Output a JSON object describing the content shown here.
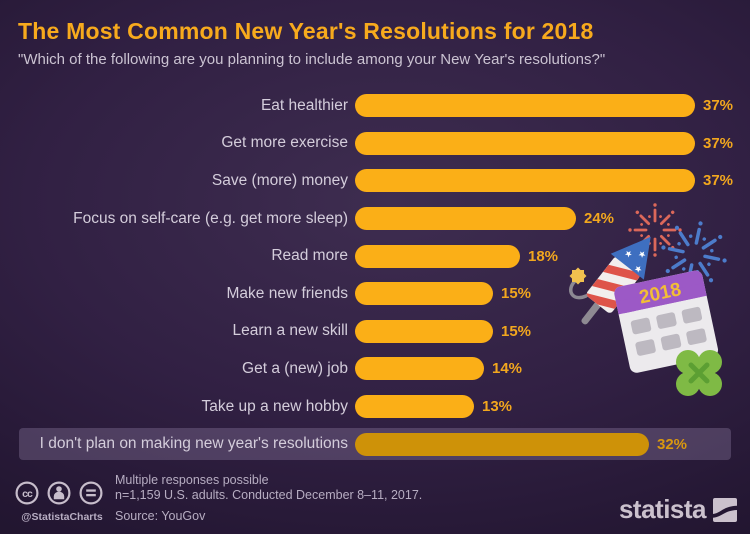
{
  "header": {
    "title": "The Most Common New Year's Resolutions for 2018",
    "subtitle": "\"Which of the following are you planning to include among your New Year's resolutions?\""
  },
  "chart_data": {
    "type": "bar",
    "orientation": "horizontal",
    "categories": [
      "Eat healthier",
      "Get more exercise",
      "Save (more) money",
      "Focus on self-care (e.g. get more sleep)",
      "Read more",
      "Make new friends",
      "Learn a new skill",
      "Get a (new) job",
      "Take up a new hobby",
      "I don't plan on making new year's resolutions"
    ],
    "values": [
      37,
      37,
      37,
      24,
      18,
      15,
      15,
      14,
      13,
      32
    ],
    "value_suffix": "%",
    "xlim": [
      0,
      40
    ],
    "grid": false,
    "legend": false,
    "highlight_last_row": true,
    "notes": "last row is set apart on a lighter band with a darker gold bar"
  },
  "decor": {
    "calendar_year": "2018",
    "illustration_items": [
      "red-firework",
      "blue-firework",
      "firecracker-rocket",
      "calendar-2018",
      "four-leaf-clover"
    ]
  },
  "footer": {
    "note_line1": "Multiple responses possible",
    "note_line2": "n=1,159 U.S. adults. Conducted December 8–11, 2017.",
    "source": "Source: YouGov",
    "credit": "@StatistaCharts",
    "license_icons": [
      "cc-icon",
      "attribution-icon",
      "equal-license-icon"
    ],
    "brand": "statista"
  },
  "colors": {
    "title": "#F7AA1D",
    "subtitle": "#CBC3D2",
    "label": "#D4CDDB",
    "value": "#F2A71E",
    "value_highlight": "#D9980F",
    "bar": "#FBAF17",
    "bar_highlight": "#CE9208",
    "band": "rgba(173,154,194,0.28)",
    "footer_text": "#B7ADC2",
    "brand": "#CBC1CD",
    "background_center": "#3E2D50",
    "background_edge": "#1B1126"
  }
}
